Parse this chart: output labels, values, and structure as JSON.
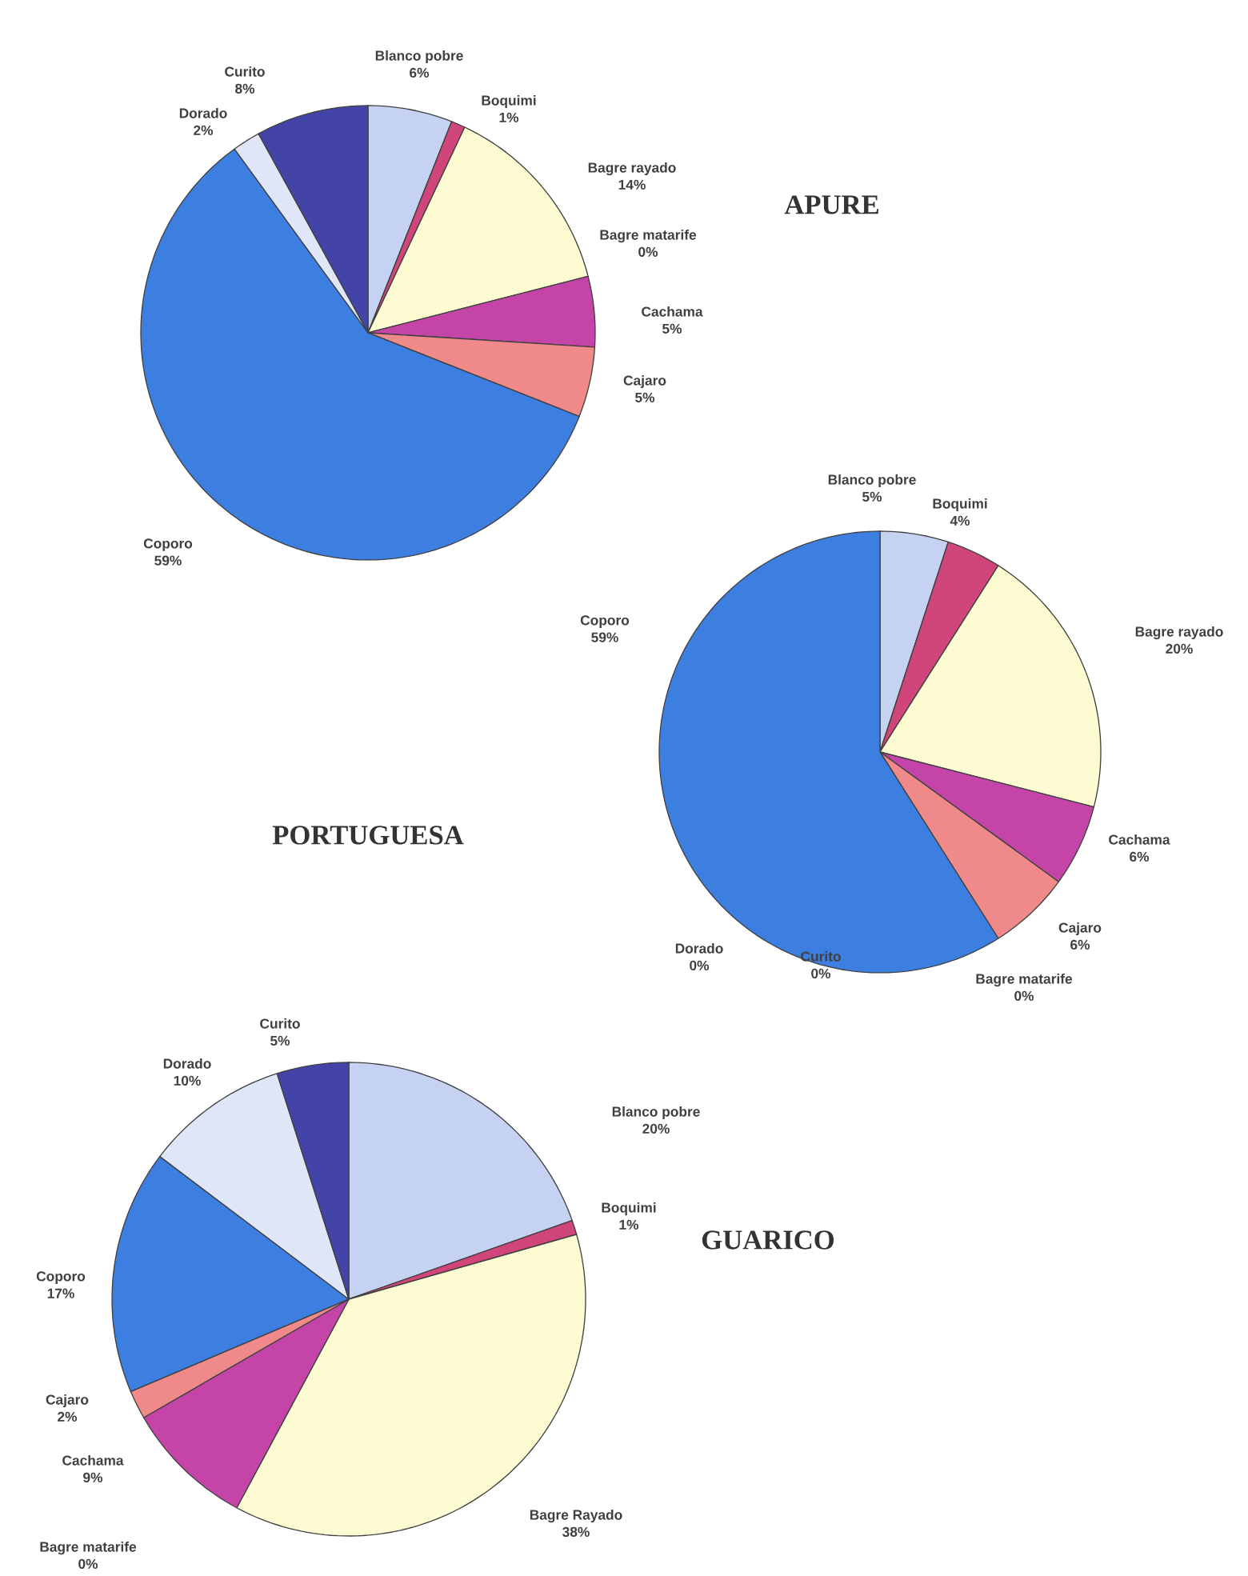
{
  "chart_data": [
    {
      "type": "pie",
      "title": "APURE",
      "categories": [
        "Blanco pobre",
        "Boquimi",
        "Bagre rayado",
        "Bagre matarife",
        "Cachama",
        "Cajaro",
        "Coporo",
        "Dorado",
        "Curito"
      ],
      "values": [
        6,
        1,
        14,
        0,
        5,
        5,
        59,
        2,
        8
      ],
      "value_labels": [
        "6%",
        "1%",
        "14%",
        "0%",
        "5%",
        "5%",
        "59%",
        "2%",
        "8%"
      ],
      "colors": [
        "#c6d2f2",
        "#d0457a",
        "#fdfbd2",
        "#a0306a",
        "#c444a8",
        "#f08a8a",
        "#3d7fe0",
        "#dfe6f8",
        "#4444a8"
      ]
    },
    {
      "type": "pie",
      "title": "PORTUGUESA",
      "categories": [
        "Blanco pobre",
        "Boquimi",
        "Bagre rayado",
        "Bagre matarife",
        "Cachama",
        "Cajaro",
        "Coporo",
        "Dorado",
        "Curito"
      ],
      "values": [
        5,
        4,
        20,
        0,
        6,
        6,
        59,
        0,
        0
      ],
      "value_labels": [
        "5%",
        "4%",
        "20%",
        "0%",
        "6%",
        "6%",
        "59%",
        "0%",
        "0%"
      ],
      "colors": [
        "#c6d2f2",
        "#d0457a",
        "#fdfbd2",
        "#a0306a",
        "#c444a8",
        "#f08a8a",
        "#3d7fe0",
        "#dfe6f8",
        "#4444a8"
      ]
    },
    {
      "type": "pie",
      "title": "GUARICO",
      "categories": [
        "Blanco pobre",
        "Boquimi",
        "Bagre Rayado",
        "Bagre matarife",
        "Cachama",
        "Cajaro",
        "Coporo",
        "Dorado",
        "Curito"
      ],
      "values": [
        20,
        1,
        38,
        0,
        9,
        2,
        17,
        10,
        5
      ],
      "value_labels": [
        "20%",
        "1%",
        "38%",
        "0%",
        "9%",
        "2%",
        "17%",
        "10%",
        "5%"
      ],
      "colors": [
        "#c6d2f2",
        "#d0457a",
        "#fdfbd2",
        "#a0306a",
        "#c444a8",
        "#f08a8a",
        "#3d7fe0",
        "#dfe6f8",
        "#4444a8"
      ]
    }
  ]
}
